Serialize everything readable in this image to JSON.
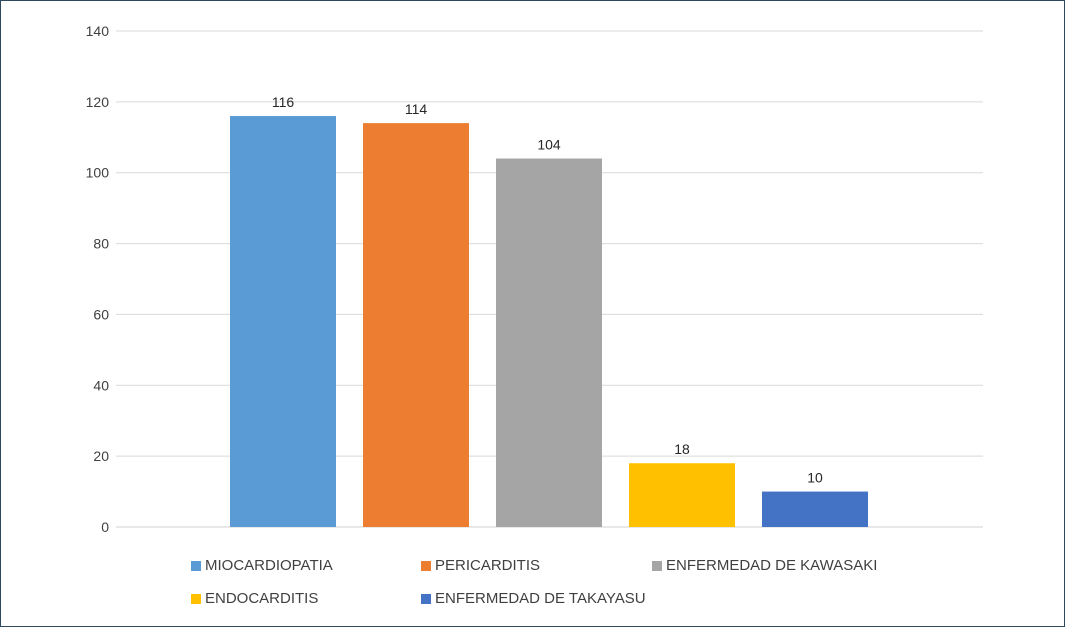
{
  "chart_data": {
    "type": "bar",
    "title": "",
    "xlabel": "",
    "ylabel": "",
    "ylim": [
      0,
      140
    ],
    "yticks": [
      0,
      20,
      40,
      60,
      80,
      100,
      120,
      140
    ],
    "grid": true,
    "legend_position": "bottom",
    "series": [
      {
        "name": "MIOCARDIOPATIA",
        "value": 116,
        "color": "#5b9bd5"
      },
      {
        "name": "PERICARDITIS",
        "value": 114,
        "color": "#ed7d31"
      },
      {
        "name": "ENFERMEDAD DE KAWASAKI",
        "value": 104,
        "color": "#a5a5a5"
      },
      {
        "name": "ENDOCARDITIS",
        "value": 18,
        "color": "#ffc000"
      },
      {
        "name": "ENFERMEDAD DE TAKAYASU",
        "value": 10,
        "color": "#4472c4"
      }
    ]
  }
}
